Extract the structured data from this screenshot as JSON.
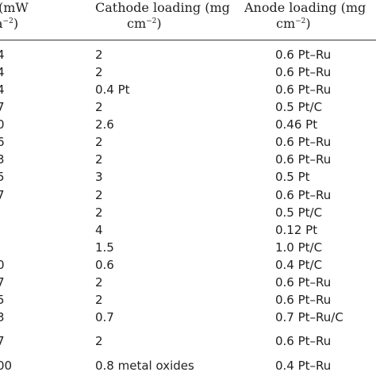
{
  "header": {
    "col1_line1": "mW",
    "col1_line2_pre": "",
    "col1_line2_sup": "−2",
    "col1_line2_post": ")",
    "col2_line1": "Cathode loading (mg",
    "col2_line2": "cm",
    "col2_line2_sup": "−2",
    "col2_line2_post": ")",
    "col3_line1": "Anode loading (mg",
    "col3_line2": "cm",
    "col3_line2_sup": "−2",
    "col3_line2_post": ")"
  },
  "rows": [
    {
      "power": "4",
      "cathode": "2",
      "anode": "0.6 Pt–Ru"
    },
    {
      "power": "4",
      "cathode": "2",
      "anode": "0.6 Pt–Ru"
    },
    {
      "power": "4",
      "cathode": "0.4 Pt",
      "anode": "0.6 Pt–Ru"
    },
    {
      "power": "7",
      "cathode": "2",
      "anode": "0.5 Pt/C"
    },
    {
      "power": "0",
      "cathode": "2.6",
      "anode": "0.46 Pt"
    },
    {
      "power": "6",
      "cathode": "2",
      "anode": "0.6 Pt–Ru"
    },
    {
      "power": "3",
      "cathode": "2",
      "anode": "0.6 Pt–Ru"
    },
    {
      "power": "5",
      "cathode": "3",
      "anode": "0.5 Pt"
    },
    {
      "power": "7",
      "cathode": "2",
      "anode": "0.6 Pt–Ru"
    },
    {
      "power": "",
      "cathode": "2",
      "anode": "0.5 Pt/C"
    },
    {
      "power": "",
      "cathode": "4",
      "anode": "0.12 Pt"
    },
    {
      "power": "",
      "cathode": "1.5",
      "anode": "1.0 Pt/C"
    },
    {
      "power": "0",
      "cathode": "0.6",
      "anode": "0.4 Pt/C"
    },
    {
      "power": "7",
      "cathode": "2",
      "anode": "0.6 Pt–Ru"
    },
    {
      "power": "5",
      "cathode": "2",
      "anode": "0.6 Pt–Ru"
    },
    {
      "power": "3",
      "cathode": "0.7",
      "anode": "0.7 Pt–Ru/C"
    },
    {
      "power": "",
      "cathode": "",
      "anode": ""
    },
    {
      "power": "7",
      "cathode": "2",
      "anode": "0.6 Pt–Ru"
    },
    {
      "power": "",
      "cathode": "",
      "anode": ""
    },
    {
      "power": "00",
      "cathode": "0.8 metal oxides",
      "anode": "0.4 Pt–Ru"
    }
  ]
}
